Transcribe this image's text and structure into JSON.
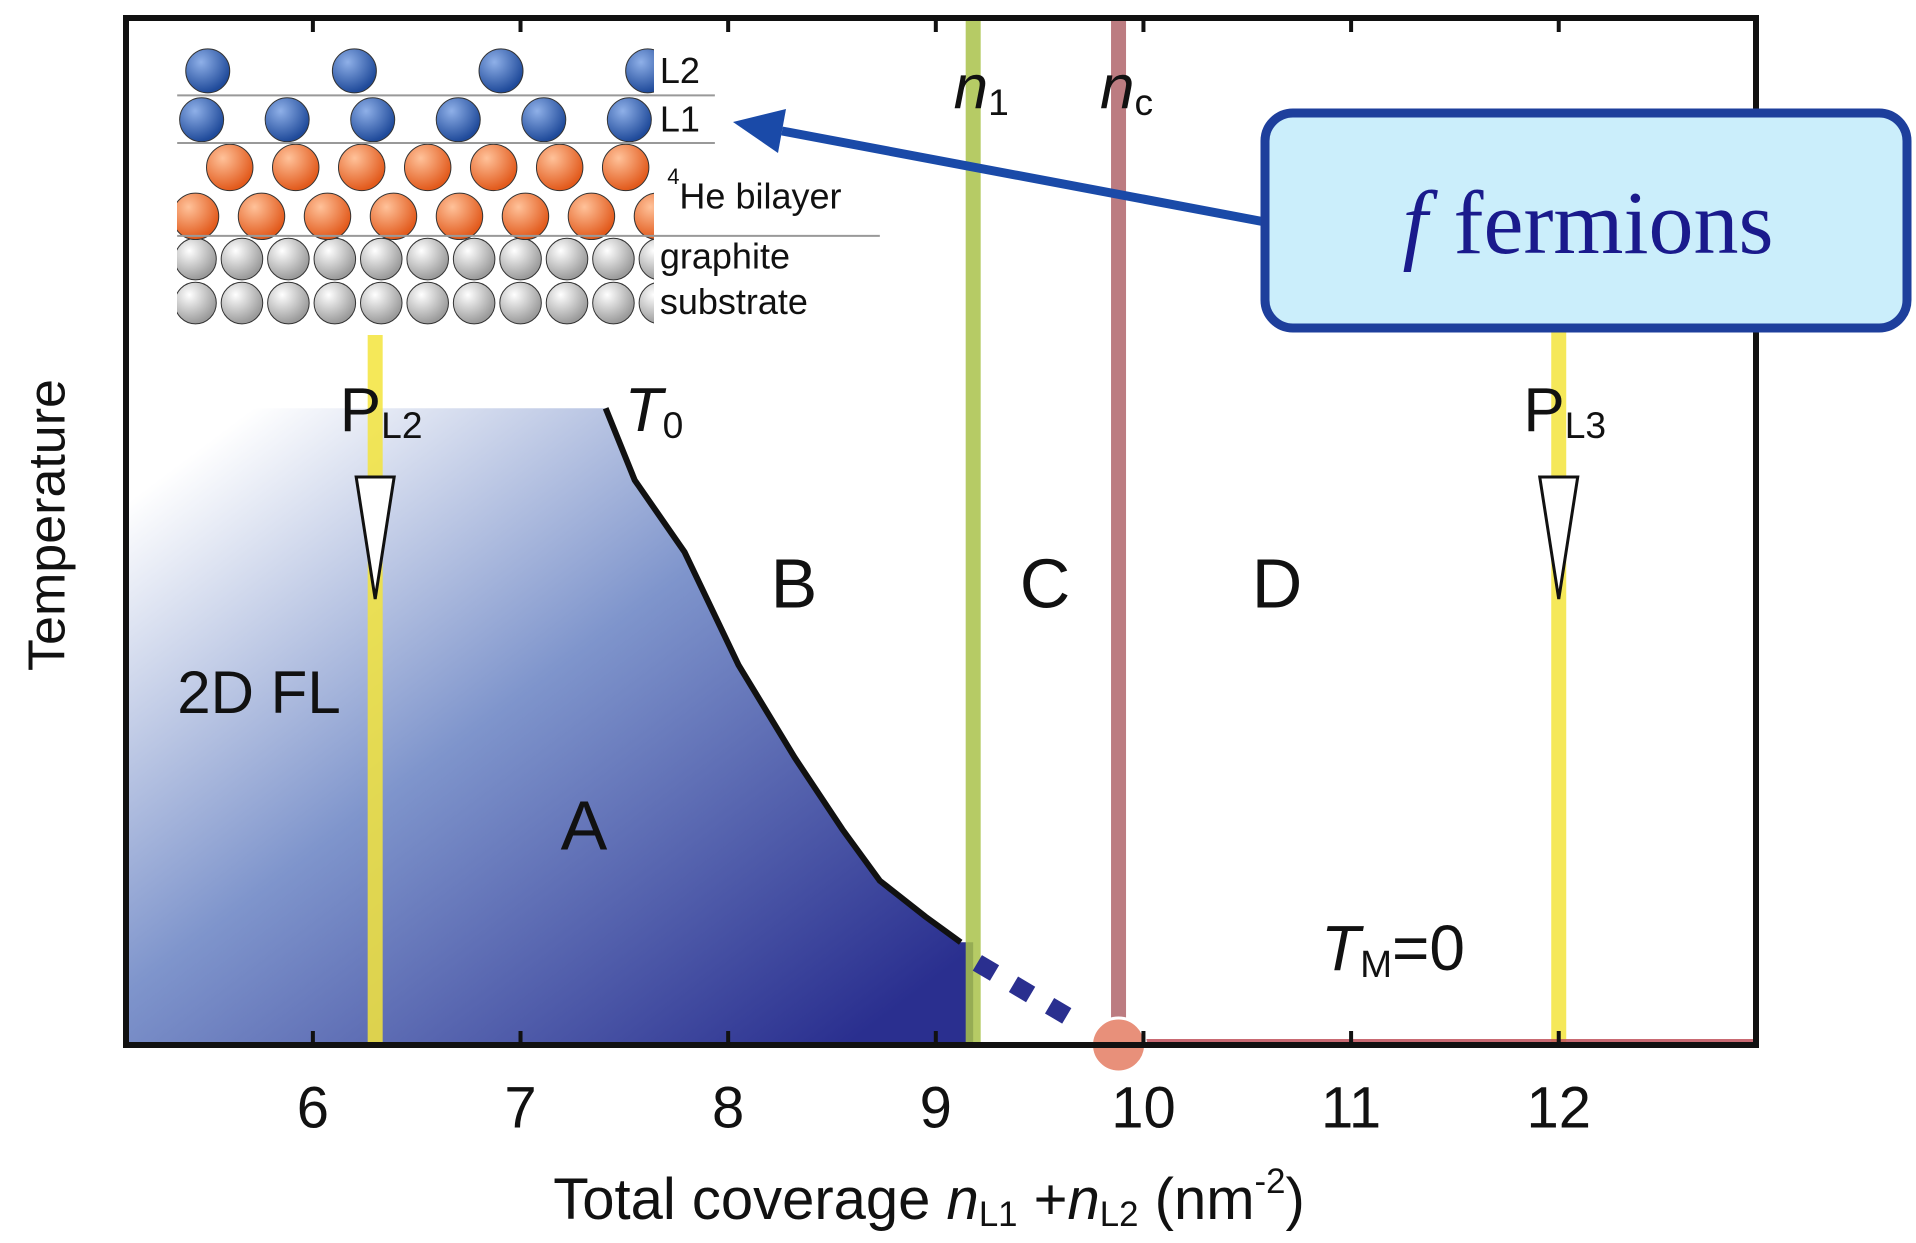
{
  "chart_data": {
    "type": "phase",
    "ylabel": "Temperature",
    "xlabel": [
      "Total coverage ",
      "n",
      "L1",
      " +",
      "n",
      "L2",
      " (nm",
      "-2",
      ")"
    ],
    "xlim": [
      5.1,
      12.95
    ],
    "ylim": [
      0,
      1
    ],
    "xticks": [
      6,
      7,
      8,
      9,
      10,
      11,
      12
    ],
    "regions": [
      "A",
      "B",
      "C",
      "D",
      "2D FL"
    ],
    "boundary": {
      "label": [
        "T",
        "0"
      ],
      "x": [
        7.41,
        7.55,
        7.79,
        8.05,
        8.32,
        8.55,
        8.73,
        8.95,
        9.12
      ],
      "y": [
        0.62,
        0.55,
        0.48,
        0.37,
        0.28,
        0.21,
        0.16,
        0.125,
        0.1
      ],
      "color": "#111111"
    },
    "boundary_dashed": {
      "x": [
        9.2,
        9.7
      ],
      "y": [
        0.08,
        0.02
      ],
      "color": "#2a2f8f"
    },
    "vlines": [
      {
        "label": [
          "P",
          "L2"
        ],
        "x": 6.3,
        "color": "#f3e43c"
      },
      {
        "label": [
          "n",
          "1"
        ],
        "x": 9.18,
        "color": "#a9c24a"
      },
      {
        "label": [
          "n",
          "c"
        ],
        "x": 9.88,
        "color": "#b0656b"
      },
      {
        "label": [
          "P",
          "L3"
        ],
        "x": 12.0,
        "color": "#f3e43c"
      }
    ],
    "critical_point": {
      "x": 9.88,
      "y": 0,
      "label": [
        "T",
        "M",
        "=0"
      ],
      "color": "#e8907a"
    },
    "inset_labels": [
      "L2",
      "L1",
      "4",
      "He bilayer",
      "graphite",
      "substrate"
    ],
    "callout": {
      "math": "f",
      "text": "fermions"
    }
  }
}
